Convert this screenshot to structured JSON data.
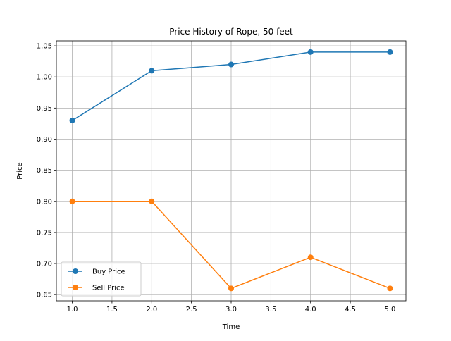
{
  "chart_data": {
    "type": "line",
    "title": "Price History of Rope, 50 feet",
    "xlabel": "Time",
    "ylabel": "Price",
    "xlim": [
      0.8,
      5.2
    ],
    "ylim": [
      0.64,
      1.058
    ],
    "grid": true,
    "legend_position": "lower-left",
    "x": [
      1.0,
      2.0,
      3.0,
      4.0,
      5.0
    ],
    "xticks": [
      1.0,
      1.5,
      2.0,
      2.5,
      3.0,
      3.5,
      4.0,
      4.5,
      5.0
    ],
    "xtick_labels": [
      "1.0",
      "1.5",
      "2.0",
      "2.5",
      "3.0",
      "3.5",
      "4.0",
      "4.5",
      "5.0"
    ],
    "yticks": [
      0.65,
      0.7,
      0.75,
      0.8,
      0.85,
      0.9,
      0.95,
      1.0,
      1.05
    ],
    "ytick_labels": [
      "0.65",
      "0.70",
      "0.75",
      "0.80",
      "0.85",
      "0.90",
      "0.95",
      "1.00",
      "1.05"
    ],
    "series": [
      {
        "name": "Buy Price",
        "color": "#1f77b4",
        "values": [
          0.93,
          1.01,
          1.02,
          1.04,
          1.04
        ]
      },
      {
        "name": "Sell Price",
        "color": "#ff7f0e",
        "values": [
          0.8,
          0.8,
          0.66,
          0.71,
          0.66
        ]
      }
    ]
  }
}
